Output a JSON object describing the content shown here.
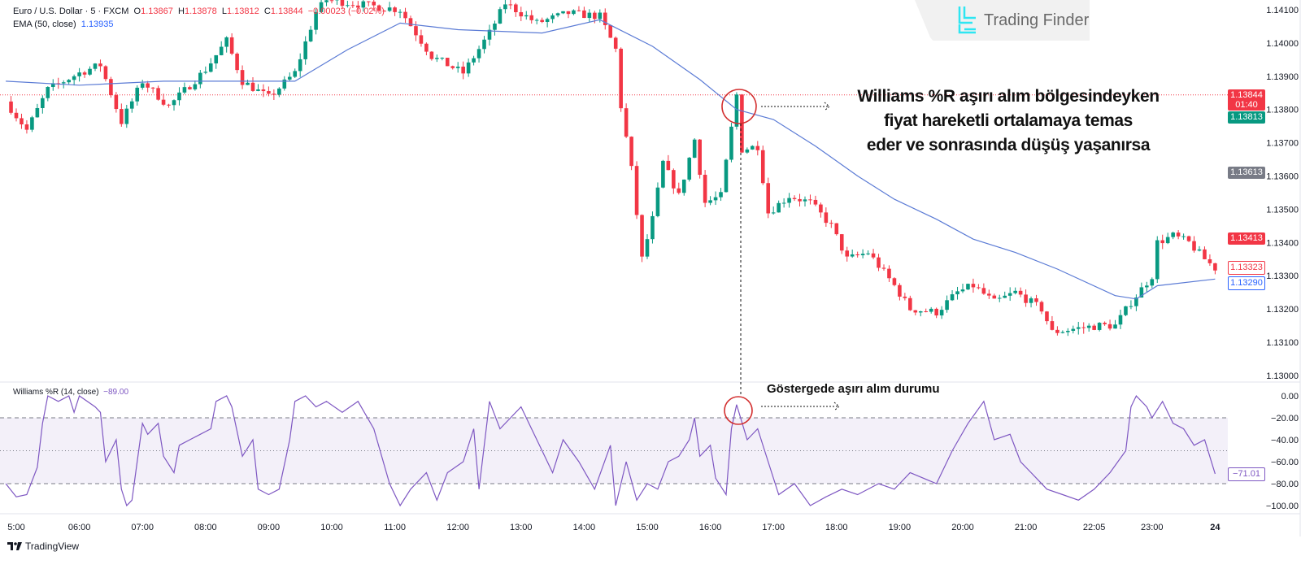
{
  "legend": {
    "symbol": "Euro / U.S. Dollar · 5 · FXCM",
    "o_label": "O",
    "o": "1.13867",
    "h_label": "H",
    "h": "1.13878",
    "l_label": "L",
    "l": "1.13812",
    "c_label": "C",
    "c": "1.13844",
    "change": "−0.00023 (−0.02%)",
    "ema_label": "EMA (50, close)",
    "ema_value": "1.13935",
    "wr_label": "Williams %R (14, close)",
    "wr_value": "−89.00"
  },
  "price_tags": {
    "last": "1.13844",
    "countdown": "01:40",
    "bid": "1.13813",
    "gray": "1.13613",
    "red": "1.13413",
    "close": "1.13323",
    "ema": "1.13290",
    "wr": "−71.01"
  },
  "annotations": {
    "main": [
      "Williams %R aşırı alım bölgesindeyken",
      "fiyat hareketli ortalamaya temas",
      "eder ve sonrasında düşüş yaşanırsa"
    ],
    "indicator": "Göstergede aşırı alım durumu"
  },
  "branding": {
    "watermark": "Trading Finder",
    "footer": "TradingView"
  },
  "colors": {
    "up": "#089981",
    "down": "#f23645",
    "ema": "#5b7bd5",
    "wr": "#7e57c2",
    "annotation": "#d32f2f"
  },
  "chart_data": [
    {
      "type": "candlestick",
      "interval": "5 min",
      "y_ticks": [
        "1.14100",
        "1.14000",
        "1.13900",
        "1.13800",
        "1.13700",
        "1.13600",
        "1.13500",
        "1.13400",
        "1.13300",
        "1.13200",
        "1.13100",
        "1.13000"
      ],
      "ylim": [
        1.13,
        1.141
      ],
      "x_ticks": [
        "5:00",
        "06:00",
        "07:00",
        "08:00",
        "09:00",
        "10:00",
        "11:00",
        "12:00",
        "13:00",
        "14:00",
        "15:00",
        "16:00",
        "17:00",
        "18:00",
        "19:00",
        "20:00",
        "21:00",
        "22:05",
        "23:00",
        "24"
      ],
      "close_path": [
        [
          "4:50",
          1.13824
        ],
        [
          "5:10",
          1.13738
        ],
        [
          "5:30",
          1.1386
        ],
        [
          "6:00",
          1.1391
        ],
        [
          "6:20",
          1.13934
        ],
        [
          "6:40",
          1.13763
        ],
        [
          "7:00",
          1.13885
        ],
        [
          "7:25",
          1.1381
        ],
        [
          "8:00",
          1.1392
        ],
        [
          "8:20",
          1.14007
        ],
        [
          "8:35",
          1.13885
        ],
        [
          "9:00",
          1.13836
        ],
        [
          "9:25",
          1.1391
        ],
        [
          "9:45",
          1.14093
        ],
        [
          "9:55",
          1.1413
        ],
        [
          "11:05",
          1.141
        ],
        [
          "11:20",
          1.1403
        ],
        [
          "11:35",
          1.1396
        ],
        [
          "12:05",
          1.1391
        ],
        [
          "12:30",
          1.1403
        ],
        [
          "12:45",
          1.1412
        ],
        [
          "13:15",
          1.1406
        ],
        [
          "13:45",
          1.1409
        ],
        [
          "14:15",
          1.1408
        ],
        [
          "14:30",
          1.1398
        ],
        [
          "14:35",
          1.1381
        ],
        [
          "14:45",
          1.1362
        ],
        [
          "14:55",
          1.1335
        ],
        [
          "15:05",
          1.1347
        ],
        [
          "15:15",
          1.1364
        ],
        [
          "15:30",
          1.1354
        ],
        [
          "15:45",
          1.1371
        ],
        [
          "15:55",
          1.1352
        ],
        [
          "16:10",
          1.1354
        ],
        [
          "16:25",
          1.13844
        ],
        [
          "16:30",
          1.1368
        ],
        [
          "16:45",
          1.1369
        ],
        [
          "16:55",
          1.1349
        ],
        [
          "17:15",
          1.1354
        ],
        [
          "17:35",
          1.1352
        ],
        [
          "17:55",
          1.1345
        ],
        [
          "18:10",
          1.1335
        ],
        [
          "18:30",
          1.1337
        ],
        [
          "18:55",
          1.1327
        ],
        [
          "19:10",
          1.132
        ],
        [
          "19:35",
          1.1319
        ],
        [
          "19:55",
          1.1325
        ],
        [
          "20:10",
          1.1327
        ],
        [
          "20:30",
          1.1322
        ],
        [
          "20:50",
          1.1325
        ],
        [
          "21:15",
          1.132
        ],
        [
          "21:25",
          1.1313
        ],
        [
          "21:45",
          1.1314
        ],
        [
          "22:10",
          1.1315
        ],
        [
          "22:25",
          1.1315
        ],
        [
          "22:40",
          1.1322
        ],
        [
          "23:00",
          1.133
        ],
        [
          "23:05",
          1.134
        ],
        [
          "23:20",
          1.1342
        ],
        [
          "23:35",
          1.134
        ],
        [
          "23:50",
          1.1335
        ],
        [
          "24:00",
          1.13323
        ]
      ],
      "ema": {
        "name": "EMA (50, close)",
        "points": [
          [
            "4:50",
            1.13885
          ],
          [
            "6:00",
            1.13873
          ],
          [
            "7:20",
            1.13885
          ],
          [
            "8:35",
            1.13885
          ],
          [
            "9:25",
            1.13885
          ],
          [
            "10:15",
            1.1398
          ],
          [
            "11:05",
            1.1406
          ],
          [
            "12:00",
            1.1404
          ],
          [
            "13:20",
            1.1403
          ],
          [
            "14:15",
            1.1407
          ],
          [
            "15:05",
            1.1399
          ],
          [
            "15:50",
            1.1389
          ],
          [
            "16:25",
            1.138
          ],
          [
            "17:00",
            1.1377
          ],
          [
            "17:40",
            1.1369
          ],
          [
            "18:20",
            1.136
          ],
          [
            "18:55",
            1.1353
          ],
          [
            "19:35",
            1.1347
          ],
          [
            "20:10",
            1.1341
          ],
          [
            "20:50",
            1.1337
          ],
          [
            "21:30",
            1.1332
          ],
          [
            "22:25",
            1.1324
          ],
          [
            "22:45",
            1.1323
          ],
          [
            "23:05",
            1.1327
          ],
          [
            "24:00",
            1.1329
          ]
        ]
      },
      "horizontal_line": 1.13844
    },
    {
      "type": "line",
      "name": "Williams %R (14, close)",
      "y_ticks": [
        "0.00",
        "−20.00",
        "−40.00",
        "−60.00",
        "−80.00",
        "−100.00"
      ],
      "ylim": [
        -100,
        0
      ],
      "bands": {
        "upper": -20,
        "middle": -50,
        "lower": -80
      },
      "points": [
        [
          "4:50",
          -80
        ],
        [
          "5:00",
          -92
        ],
        [
          "5:10",
          -90
        ],
        [
          "5:20",
          -65
        ],
        [
          "5:25",
          -25
        ],
        [
          "5:30",
          0
        ],
        [
          "5:40",
          -5
        ],
        [
          "5:50",
          0
        ],
        [
          "5:55",
          -15
        ],
        [
          "6:00",
          0
        ],
        [
          "6:15",
          -10
        ],
        [
          "6:20",
          -15
        ],
        [
          "6:25",
          -60
        ],
        [
          "6:35",
          -40
        ],
        [
          "6:40",
          -85
        ],
        [
          "6:45",
          -100
        ],
        [
          "6:50",
          -95
        ],
        [
          "6:55",
          -60
        ],
        [
          "7:00",
          -25
        ],
        [
          "7:05",
          -35
        ],
        [
          "7:15",
          -25
        ],
        [
          "7:20",
          -55
        ],
        [
          "7:30",
          -70
        ],
        [
          "7:35",
          -45
        ],
        [
          "7:45",
          -40
        ],
        [
          "7:55",
          -35
        ],
        [
          "8:05",
          -30
        ],
        [
          "8:10",
          -5
        ],
        [
          "8:20",
          0
        ],
        [
          "8:25",
          -10
        ],
        [
          "8:35",
          -55
        ],
        [
          "8:45",
          -40
        ],
        [
          "8:50",
          -85
        ],
        [
          "9:00",
          -90
        ],
        [
          "9:10",
          -85
        ],
        [
          "9:20",
          -40
        ],
        [
          "9:25",
          -5
        ],
        [
          "9:35",
          0
        ],
        [
          "9:45",
          -10
        ],
        [
          "9:55",
          -5
        ],
        [
          "10:10",
          -15
        ],
        [
          "10:25",
          -5
        ],
        [
          "10:40",
          -30
        ],
        [
          "10:55",
          -80
        ],
        [
          "11:05",
          -100
        ],
        [
          "11:15",
          -85
        ],
        [
          "11:30",
          -70
        ],
        [
          "11:40",
          -95
        ],
        [
          "11:50",
          -70
        ],
        [
          "12:05",
          -60
        ],
        [
          "12:15",
          -30
        ],
        [
          "12:20",
          -85
        ],
        [
          "12:30",
          -5
        ],
        [
          "12:40",
          -30
        ],
        [
          "12:50",
          -20
        ],
        [
          "13:00",
          -10
        ],
        [
          "13:10",
          -30
        ],
        [
          "13:20",
          -50
        ],
        [
          "13:30",
          -70
        ],
        [
          "13:40",
          -40
        ],
        [
          "13:55",
          -60
        ],
        [
          "14:10",
          -85
        ],
        [
          "14:25",
          -45
        ],
        [
          "14:30",
          -100
        ],
        [
          "14:40",
          -60
        ],
        [
          "14:50",
          -95
        ],
        [
          "15:00",
          -80
        ],
        [
          "15:10",
          -85
        ],
        [
          "15:20",
          -60
        ],
        [
          "15:30",
          -55
        ],
        [
          "15:40",
          -40
        ],
        [
          "15:45",
          -20
        ],
        [
          "15:50",
          -55
        ],
        [
          "16:00",
          -45
        ],
        [
          "16:05",
          -75
        ],
        [
          "16:15",
          -90
        ],
        [
          "16:20",
          -30
        ],
        [
          "16:25",
          -8
        ],
        [
          "16:35",
          -40
        ],
        [
          "16:45",
          -30
        ],
        [
          "16:55",
          -60
        ],
        [
          "17:05",
          -90
        ],
        [
          "17:20",
          -80
        ],
        [
          "17:35",
          -100
        ],
        [
          "17:50",
          -92
        ],
        [
          "18:05",
          -85
        ],
        [
          "18:20",
          -90
        ],
        [
          "18:40",
          -80
        ],
        [
          "18:55",
          -85
        ],
        [
          "19:10",
          -70
        ],
        [
          "19:35",
          -80
        ],
        [
          "19:50",
          -50
        ],
        [
          "20:05",
          -25
        ],
        [
          "20:20",
          -5
        ],
        [
          "20:30",
          -40
        ],
        [
          "20:45",
          -35
        ],
        [
          "20:55",
          -60
        ],
        [
          "21:05",
          -70
        ],
        [
          "21:20",
          -85
        ],
        [
          "21:35",
          -90
        ],
        [
          "21:50",
          -95
        ],
        [
          "22:05",
          -85
        ],
        [
          "22:20",
          -70
        ],
        [
          "22:35",
          -50
        ],
        [
          "22:40",
          -10
        ],
        [
          "22:45",
          0
        ],
        [
          "22:55",
          -10
        ],
        [
          "23:00",
          -20
        ],
        [
          "23:10",
          -5
        ],
        [
          "23:20",
          -25
        ],
        [
          "23:30",
          -30
        ],
        [
          "23:40",
          -45
        ],
        [
          "23:50",
          -40
        ],
        [
          "24:00",
          -71.01
        ]
      ]
    }
  ]
}
